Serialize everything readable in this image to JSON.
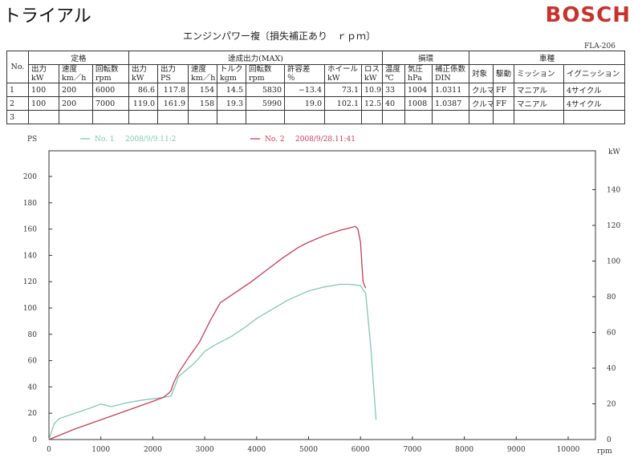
{
  "header": {
    "title": "トライアル",
    "brand": "BOSCH",
    "subtitle": "エンジンパワー複〔損失補正あり　ｒｐｍ〕",
    "code": "FLA-206"
  },
  "table": {
    "groups": [
      "定格",
      "達成出力(MAX)",
      "損環",
      "車種"
    ],
    "no_label": "No.",
    "col_headers": [
      [
        "出力",
        "kW"
      ],
      [
        "速度",
        "km／h"
      ],
      [
        "回転数",
        "rpm"
      ],
      [
        "出力",
        "kW"
      ],
      [
        "出力",
        "PS"
      ],
      [
        "速度",
        "km／h"
      ],
      [
        "トルク",
        "kgm"
      ],
      [
        "回転数",
        "rpm"
      ],
      [
        "許容差",
        "％"
      ],
      [
        "ホイール",
        "kW"
      ],
      [
        "ロス",
        "kW"
      ],
      [
        "温度",
        "℃"
      ],
      [
        "気圧",
        "hPa"
      ],
      [
        "補正係数",
        "DIN"
      ],
      [
        "対象",
        ""
      ],
      [
        "駆動",
        ""
      ],
      [
        "ミッション",
        ""
      ],
      [
        "イグニッション",
        ""
      ]
    ],
    "rows": [
      {
        "no": "1",
        "cells": [
          "100",
          "200",
          "6000",
          "86.6",
          "117.8",
          "154",
          "14.5",
          "5830",
          "−13.4",
          "73.1",
          "10.9",
          "33",
          "1004",
          "1.0311",
          "クルマ",
          "FF",
          "マニアル",
          "4サイクル"
        ]
      },
      {
        "no": "2",
        "cells": [
          "100",
          "200",
          "7000",
          "119.0",
          "161.9",
          "158",
          "19.3",
          "5990",
          "19.0",
          "102.1",
          "12.5",
          "40",
          "1008",
          "1.0387",
          "クルマ",
          "FF",
          "マニアル",
          "4サイクル"
        ]
      },
      {
        "no": "3",
        "cells": [
          "",
          "",
          "",
          "",
          "",
          "",
          "",
          "",
          "",
          "",
          "",
          "",
          "",
          "",
          "",
          "",
          "",
          ""
        ]
      }
    ]
  },
  "chart_data": {
    "type": "line",
    "xlabel": "rpm",
    "ylabel_left": "PS",
    "ylabel_right": "kW",
    "xlim": [
      0,
      11000
    ],
    "ylim_left": [
      0,
      220
    ],
    "ylim_right": [
      0,
      160
    ],
    "x_ticks": [
      0,
      1000,
      2000,
      3000,
      4000,
      5000,
      6000,
      7000,
      8000,
      9000,
      10000
    ],
    "y_ticks_left": [
      0,
      20,
      40,
      60,
      80,
      100,
      120,
      140,
      160,
      180,
      200
    ],
    "y_ticks_right": [
      0,
      20,
      40,
      60,
      80,
      100,
      120,
      140
    ],
    "grid": false,
    "legend": [
      {
        "label": "No. 1",
        "date": "2008/9/9.11:2",
        "color": "#7fc9b0"
      },
      {
        "label": "No. 2",
        "date": "2008/9/28.11:41",
        "color": "#c83c5a"
      }
    ],
    "series": [
      {
        "name": "No. 1",
        "color": "#7fc9b0",
        "x": [
          0,
          100,
          200,
          500,
          800,
          1000,
          1200,
          1500,
          1800,
          2000,
          2200,
          2350,
          2400,
          2500,
          2800,
          3000,
          3200,
          3500,
          3800,
          4000,
          4300,
          4600,
          5000,
          5300,
          5600,
          5800,
          6000,
          6050,
          6100,
          6200,
          6300
        ],
        "y": [
          0,
          12,
          16,
          20,
          24,
          27,
          25,
          28,
          30,
          31,
          32,
          33,
          38,
          48,
          58,
          67,
          72,
          78,
          86,
          92,
          99,
          106,
          113,
          116,
          118,
          118,
          117,
          114,
          111,
          70,
          15
        ]
      },
      {
        "name": "No. 2",
        "color": "#c83c5a",
        "x": [
          0,
          500,
          1000,
          1500,
          2000,
          2200,
          2300,
          2350,
          2400,
          2500,
          2700,
          2900,
          3100,
          3300,
          3600,
          3900,
          4200,
          4500,
          4800,
          5000,
          5300,
          5600,
          5800,
          5900,
          5950,
          6000,
          6050,
          6100
        ],
        "y": [
          0,
          8,
          15,
          22,
          29,
          32,
          35,
          37,
          43,
          51,
          63,
          74,
          90,
          104,
          112,
          120,
          129,
          138,
          146,
          150,
          155,
          159,
          161,
          162,
          160,
          150,
          120,
          115
        ]
      }
    ]
  }
}
